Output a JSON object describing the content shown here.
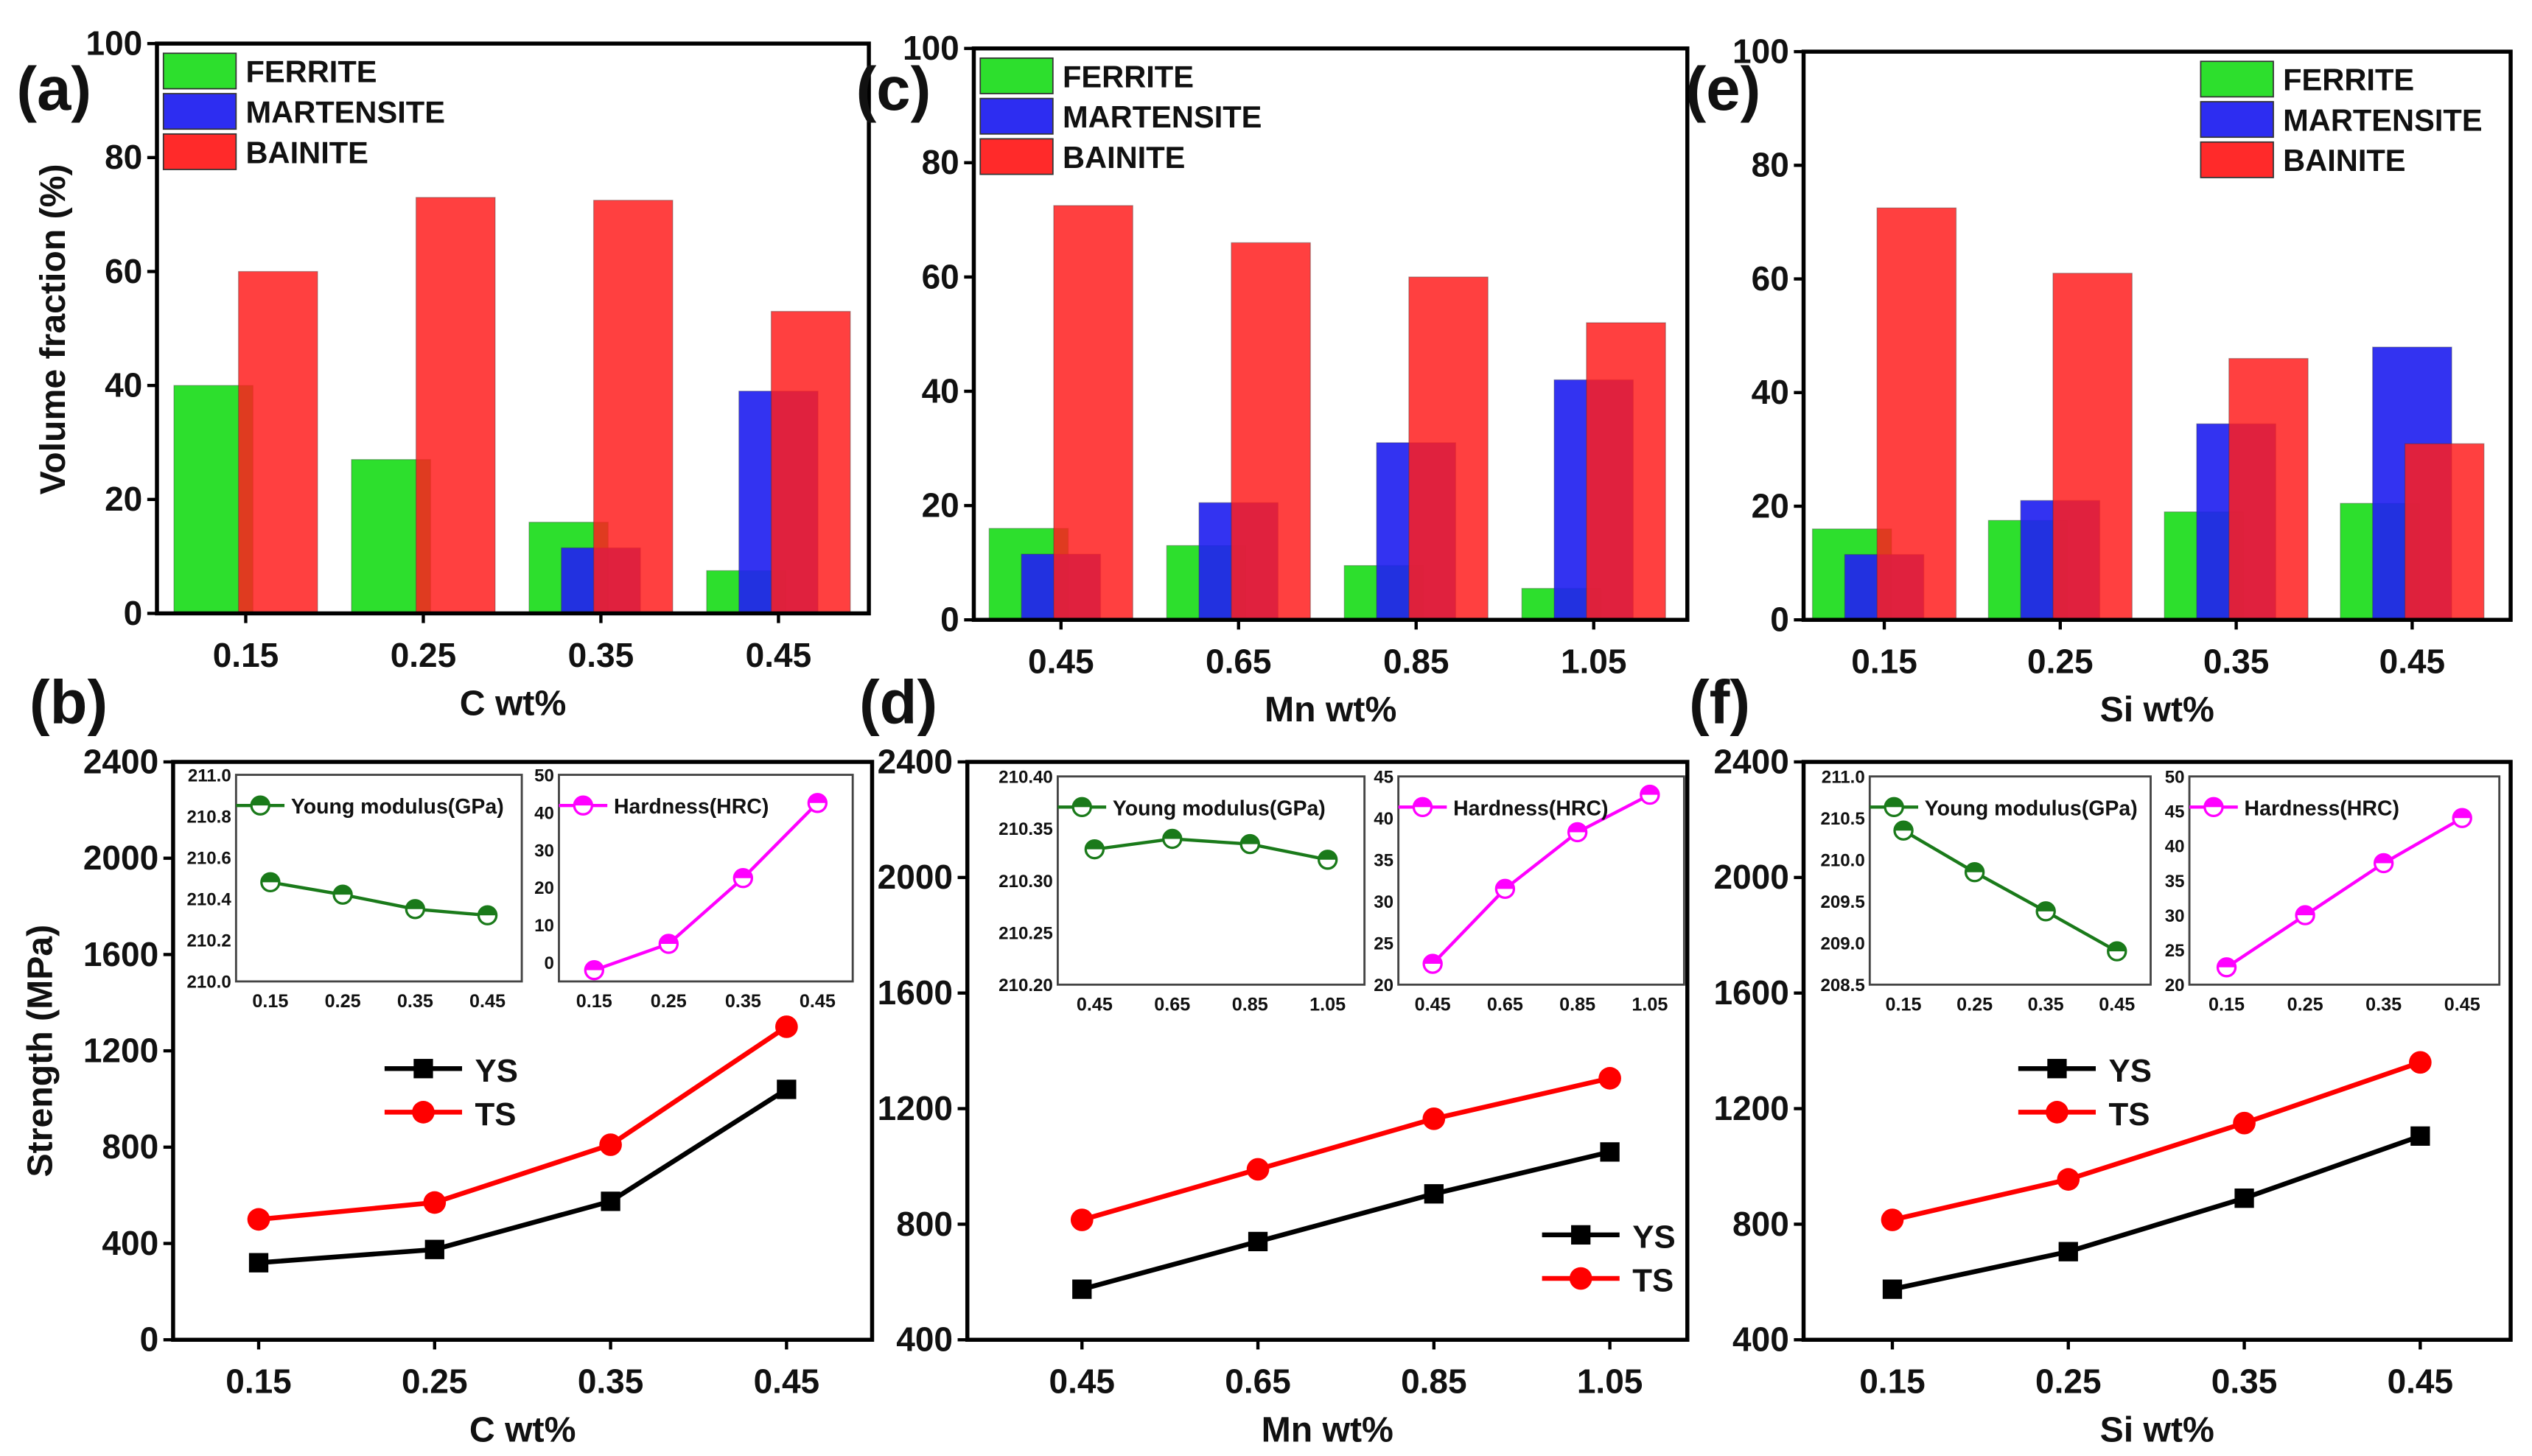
{
  "chart_data": [
    {
      "panel": "(a)",
      "type": "bar",
      "xlabel": "C wt%",
      "ylabel": "Volume fraction (%)",
      "ylim": [
        0,
        100
      ],
      "yticks": [
        "0",
        "20",
        "40",
        "60",
        "80",
        "100"
      ],
      "categories": [
        "0.15",
        "0.25",
        "0.35",
        "0.45"
      ],
      "legend_position": "top-left",
      "series": [
        {
          "name": "FERRITE",
          "color": "#22dd22",
          "values": [
            40,
            27,
            16,
            7.5
          ]
        },
        {
          "name": "MARTENSITE",
          "color": "#2222f0",
          "values": [
            0,
            0,
            11.5,
            39
          ]
        },
        {
          "name": "BAINITE",
          "color": "#ff1f1f",
          "values": [
            60,
            73,
            72.5,
            53
          ]
        }
      ]
    },
    {
      "panel": "(c)",
      "type": "bar",
      "xlabel": "Mn wt%",
      "ylabel": "",
      "ylim": [
        0,
        100
      ],
      "yticks": [
        "0",
        "20",
        "40",
        "60",
        "80",
        "100"
      ],
      "categories": [
        "0.45",
        "0.65",
        "0.85",
        "1.05"
      ],
      "legend_position": "top-left",
      "series": [
        {
          "name": "FERRITE",
          "color": "#22dd22",
          "values": [
            16,
            13,
            9.5,
            5.5
          ]
        },
        {
          "name": "MARTENSITE",
          "color": "#2222f0",
          "values": [
            11.5,
            20.5,
            31,
            42
          ]
        },
        {
          "name": "BAINITE",
          "color": "#ff1f1f",
          "values": [
            72.5,
            66,
            60,
            52
          ]
        }
      ]
    },
    {
      "panel": "(e)",
      "type": "bar",
      "xlabel": "Si wt%",
      "ylabel": "",
      "ylim": [
        0,
        100
      ],
      "yticks": [
        "0",
        "20",
        "40",
        "60",
        "80",
        "100"
      ],
      "categories": [
        "0.15",
        "0.25",
        "0.35",
        "0.45"
      ],
      "legend_position": "top-right",
      "series": [
        {
          "name": "FERRITE",
          "color": "#22dd22",
          "values": [
            16,
            17.5,
            19,
            20.5
          ]
        },
        {
          "name": "MARTENSITE",
          "color": "#2222f0",
          "values": [
            11.5,
            21,
            34.5,
            48
          ]
        },
        {
          "name": "BAINITE",
          "color": "#ff1f1f",
          "values": [
            72.5,
            61,
            46,
            31
          ]
        }
      ]
    },
    {
      "panel": "(b)",
      "type": "line",
      "xlabel": "C wt%",
      "ylabel": "Strength (MPa)",
      "ylim": [
        0,
        2400
      ],
      "yticks": [
        "0",
        "400",
        "800",
        "1200",
        "1600",
        "2000",
        "2400"
      ],
      "categories": [
        "0.15",
        "0.25",
        "0.35",
        "0.45"
      ],
      "legend_position": "center-left",
      "series": [
        {
          "name": "YS",
          "color": "#000000",
          "marker": "square",
          "values": [
            320,
            375,
            575,
            1040
          ]
        },
        {
          "name": "TS",
          "color": "#ff0000",
          "marker": "circle",
          "values": [
            500,
            570,
            810,
            1300
          ]
        }
      ],
      "insets": [
        {
          "type": "line",
          "legend": "Young modulus(GPa)",
          "color": "#1a7a1a",
          "ylim": [
            210.0,
            211.0
          ],
          "yticks": [
            "210.0",
            "210.2",
            "210.4",
            "210.6",
            "210.8",
            "211.0"
          ],
          "categories": [
            "0.15",
            "0.25",
            "0.35",
            "0.45"
          ],
          "values": [
            210.48,
            210.42,
            210.35,
            210.32
          ]
        },
        {
          "type": "line",
          "legend": "Hardness(HRC)",
          "color": "#ff00ff",
          "ylim": [
            -5,
            50
          ],
          "yticks": [
            "0",
            "10",
            "20",
            "30",
            "40",
            "50"
          ],
          "categories": [
            "0.15",
            "0.25",
            "0.35",
            "0.45"
          ],
          "values": [
            -2,
            5,
            22.5,
            42.5
          ]
        }
      ]
    },
    {
      "panel": "(d)",
      "type": "line",
      "xlabel": "Mn wt%",
      "ylabel": "",
      "ylim": [
        400,
        2400
      ],
      "yticks": [
        "400",
        "800",
        "1200",
        "1600",
        "2000",
        "2400"
      ],
      "categories": [
        "0.45",
        "0.65",
        "0.85",
        "1.05"
      ],
      "legend_position": "center-right",
      "series": [
        {
          "name": "YS",
          "color": "#000000",
          "marker": "square",
          "values": [
            575,
            740,
            905,
            1050
          ]
        },
        {
          "name": "TS",
          "color": "#ff0000",
          "marker": "circle",
          "values": [
            815,
            990,
            1165,
            1305
          ]
        }
      ],
      "insets": [
        {
          "type": "line",
          "legend": "Young modulus(GPa)",
          "color": "#1a7a1a",
          "ylim": [
            210.2,
            210.4
          ],
          "yticks": [
            "210.20",
            "210.25",
            "210.30",
            "210.35",
            "210.40"
          ],
          "categories": [
            "0.45",
            "0.65",
            "0.85",
            "1.05"
          ],
          "values": [
            210.33,
            210.34,
            210.335,
            210.32
          ]
        },
        {
          "type": "line",
          "legend": "Hardness(HRC)",
          "color": "#ff00ff",
          "ylim": [
            20,
            45
          ],
          "yticks": [
            "20",
            "25",
            "30",
            "35",
            "40",
            "45"
          ],
          "categories": [
            "0.45",
            "0.65",
            "0.85",
            "1.05"
          ],
          "values": [
            22.5,
            31.5,
            38.3,
            42.8
          ]
        }
      ]
    },
    {
      "panel": "(f)",
      "type": "line",
      "xlabel": "Si wt%",
      "ylabel": "",
      "ylim": [
        400,
        2400
      ],
      "yticks": [
        "400",
        "800",
        "1200",
        "1600",
        "2000",
        "2400"
      ],
      "categories": [
        "0.15",
        "0.25",
        "0.35",
        "0.45"
      ],
      "legend_position": "center-left",
      "series": [
        {
          "name": "YS",
          "color": "#000000",
          "marker": "square",
          "values": [
            575,
            705,
            890,
            1105
          ]
        },
        {
          "name": "TS",
          "color": "#ff0000",
          "marker": "circle",
          "values": [
            815,
            955,
            1150,
            1360
          ]
        }
      ],
      "insets": [
        {
          "type": "line",
          "legend": "Young modulus(GPa)",
          "color": "#1a7a1a",
          "ylim": [
            208.5,
            211.0
          ],
          "yticks": [
            "208.5",
            "209.0",
            "209.5",
            "210.0",
            "210.5",
            "211.0"
          ],
          "categories": [
            "0.15",
            "0.25",
            "0.35",
            "0.45"
          ],
          "values": [
            210.35,
            209.85,
            209.38,
            208.9
          ]
        },
        {
          "type": "line",
          "legend": "Hardness(HRC)",
          "color": "#ff00ff",
          "ylim": [
            20,
            50
          ],
          "yticks": [
            "20",
            "25",
            "30",
            "35",
            "40",
            "45",
            "50"
          ],
          "categories": [
            "0.15",
            "0.25",
            "0.35",
            "0.45"
          ],
          "values": [
            22.5,
            30,
            37.5,
            44
          ]
        }
      ]
    }
  ]
}
